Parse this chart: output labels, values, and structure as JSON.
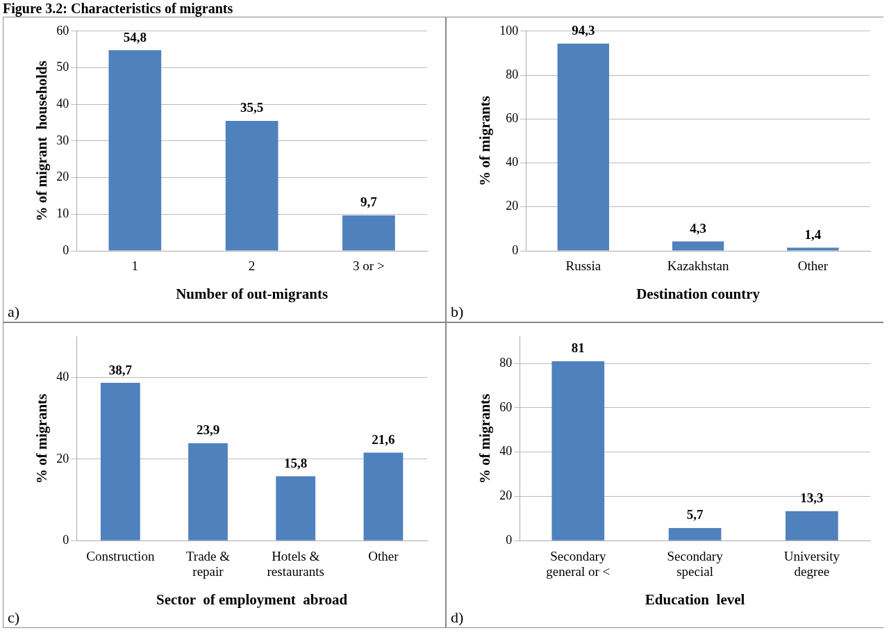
{
  "chart_data": [
    {
      "type": "bar",
      "title": "Figure 3.2: Characteristics of migrants",
      "xlabel": "Number of out-migrants",
      "ylabel": "% of migrant  households",
      "categories": [
        "1",
        "2",
        "3 or >"
      ],
      "values": [
        54.8,
        35.5,
        9.7
      ],
      "value_labels": [
        "54,8",
        "35,5",
        "9,7"
      ],
      "color": "#4f81bd",
      "ylim": [
        0,
        60
      ],
      "yticks": [
        0,
        10,
        20,
        30,
        40,
        50,
        60
      ],
      "grid": "y",
      "annotations": [
        "a)"
      ]
    },
    {
      "type": "bar",
      "xlabel": "Destination country",
      "ylabel": "% of migrants",
      "categories": [
        "Russia",
        "Kazakhstan",
        "Other"
      ],
      "values": [
        94.3,
        4.3,
        1.4
      ],
      "value_labels": [
        "94,3",
        "4,3",
        "1,4"
      ],
      "color": "#4f81bd",
      "ylim": [
        0,
        100
      ],
      "yticks": [
        0,
        20,
        40,
        60,
        80,
        100
      ],
      "grid": "y",
      "annotations": [
        "b)"
      ]
    },
    {
      "type": "bar",
      "xlabel": "Sector  of employment  abroad",
      "ylabel": "% of migrants",
      "categories": [
        [
          "Construction"
        ],
        [
          "Trade &",
          "repair"
        ],
        [
          "Hotels &",
          "restaurants"
        ],
        [
          "Other"
        ]
      ],
      "values": [
        38.7,
        23.9,
        15.8,
        21.6
      ],
      "value_labels": [
        "38,7",
        "23,9",
        "15,8",
        "21,6"
      ],
      "color": "#4f81bd",
      "ylim": [
        0,
        50
      ],
      "yticks": [
        0,
        20,
        40
      ],
      "grid": "y",
      "annotations": [
        "c)"
      ]
    },
    {
      "type": "bar",
      "xlabel": "Education  level",
      "ylabel": "% of migrants",
      "categories": [
        [
          "Secondary",
          "general or <"
        ],
        [
          "Secondary",
          "special"
        ],
        [
          "University",
          "degree"
        ]
      ],
      "values": [
        81,
        5.7,
        13.3
      ],
      "value_labels": [
        "81",
        "5,7",
        "13,3"
      ],
      "color": "#4f81bd",
      "ylim": [
        0,
        92
      ],
      "yticks": [
        0,
        20,
        40,
        60,
        80
      ],
      "grid": "y",
      "annotations": [
        "d)"
      ]
    }
  ]
}
